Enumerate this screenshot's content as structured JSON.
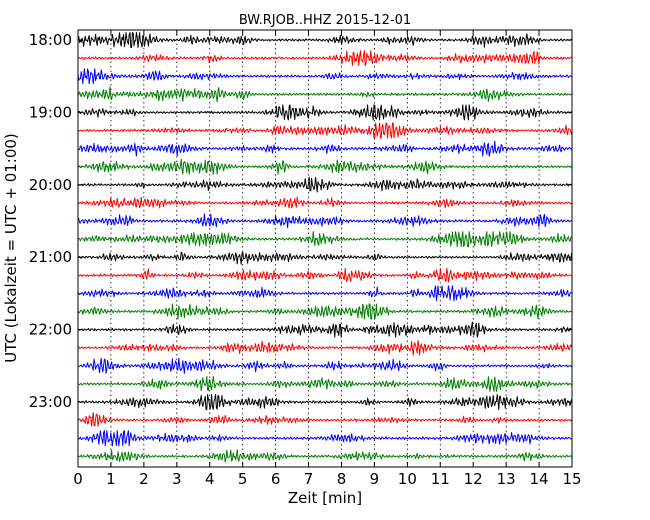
{
  "chart_data": {
    "type": "line",
    "title": "BW.RJOB..HHZ 2015-12-01",
    "xlabel": "Zeit  [min]",
    "ylabel": "UTC (Lokalzeit = UTC + 01:00)",
    "xlim": [
      0,
      15
    ],
    "x_ticks": [
      "0",
      "1",
      "2",
      "3",
      "4",
      "5",
      "6",
      "7",
      "8",
      "9",
      "10",
      "11",
      "12",
      "13",
      "14",
      "15"
    ],
    "y_ticks": [
      "18:00",
      "19:00",
      "20:00",
      "21:00",
      "22:00",
      "23:00"
    ],
    "grid_x": true,
    "trace_start": "18:00",
    "trace_interval_minutes": 15,
    "trace_count": 24,
    "series_colors": [
      "#000000",
      "#ff0000",
      "#0000ff",
      "#007f00"
    ]
  }
}
